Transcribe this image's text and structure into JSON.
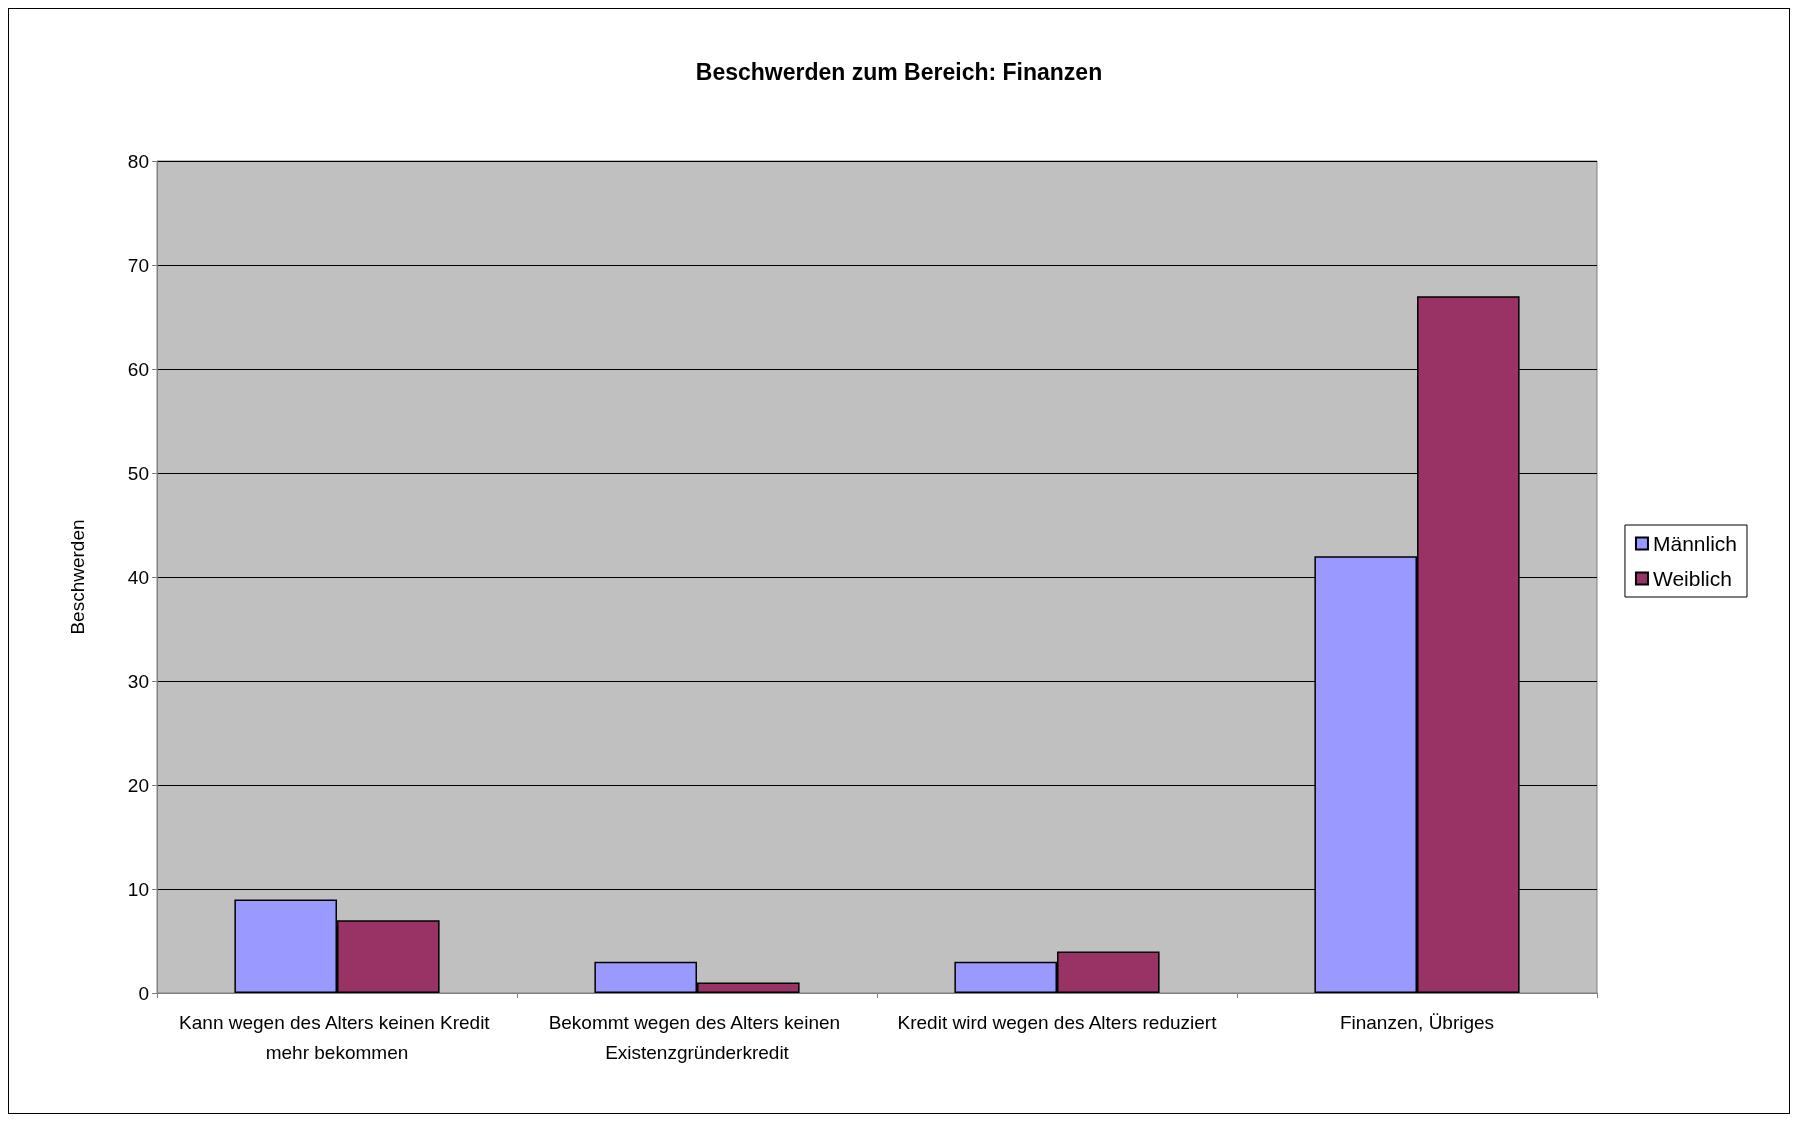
{
  "chart_data": {
    "type": "bar",
    "title": "Beschwerden zum Bereich: Finanzen",
    "ylabel": "Beschwerden",
    "categories": [
      "Kann wegen des Alters keinen Kredit mehr bekommen",
      "Bekommt wegen des Alters keinen Existenzgründerkredit",
      "Kredit wird wegen des Alters reduziert",
      "Finanzen, Übriges"
    ],
    "series": [
      {
        "name": "Männlich",
        "color": "#9999ff",
        "values": [
          9,
          3,
          3,
          42
        ]
      },
      {
        "name": "Weiblich",
        "color": "#993366",
        "values": [
          7,
          1,
          4,
          67
        ]
      }
    ],
    "ylim": [
      0,
      80
    ],
    "yticks": [
      0,
      10,
      20,
      30,
      40,
      50,
      60,
      70,
      80
    ],
    "grid": "y",
    "legend": "right"
  }
}
